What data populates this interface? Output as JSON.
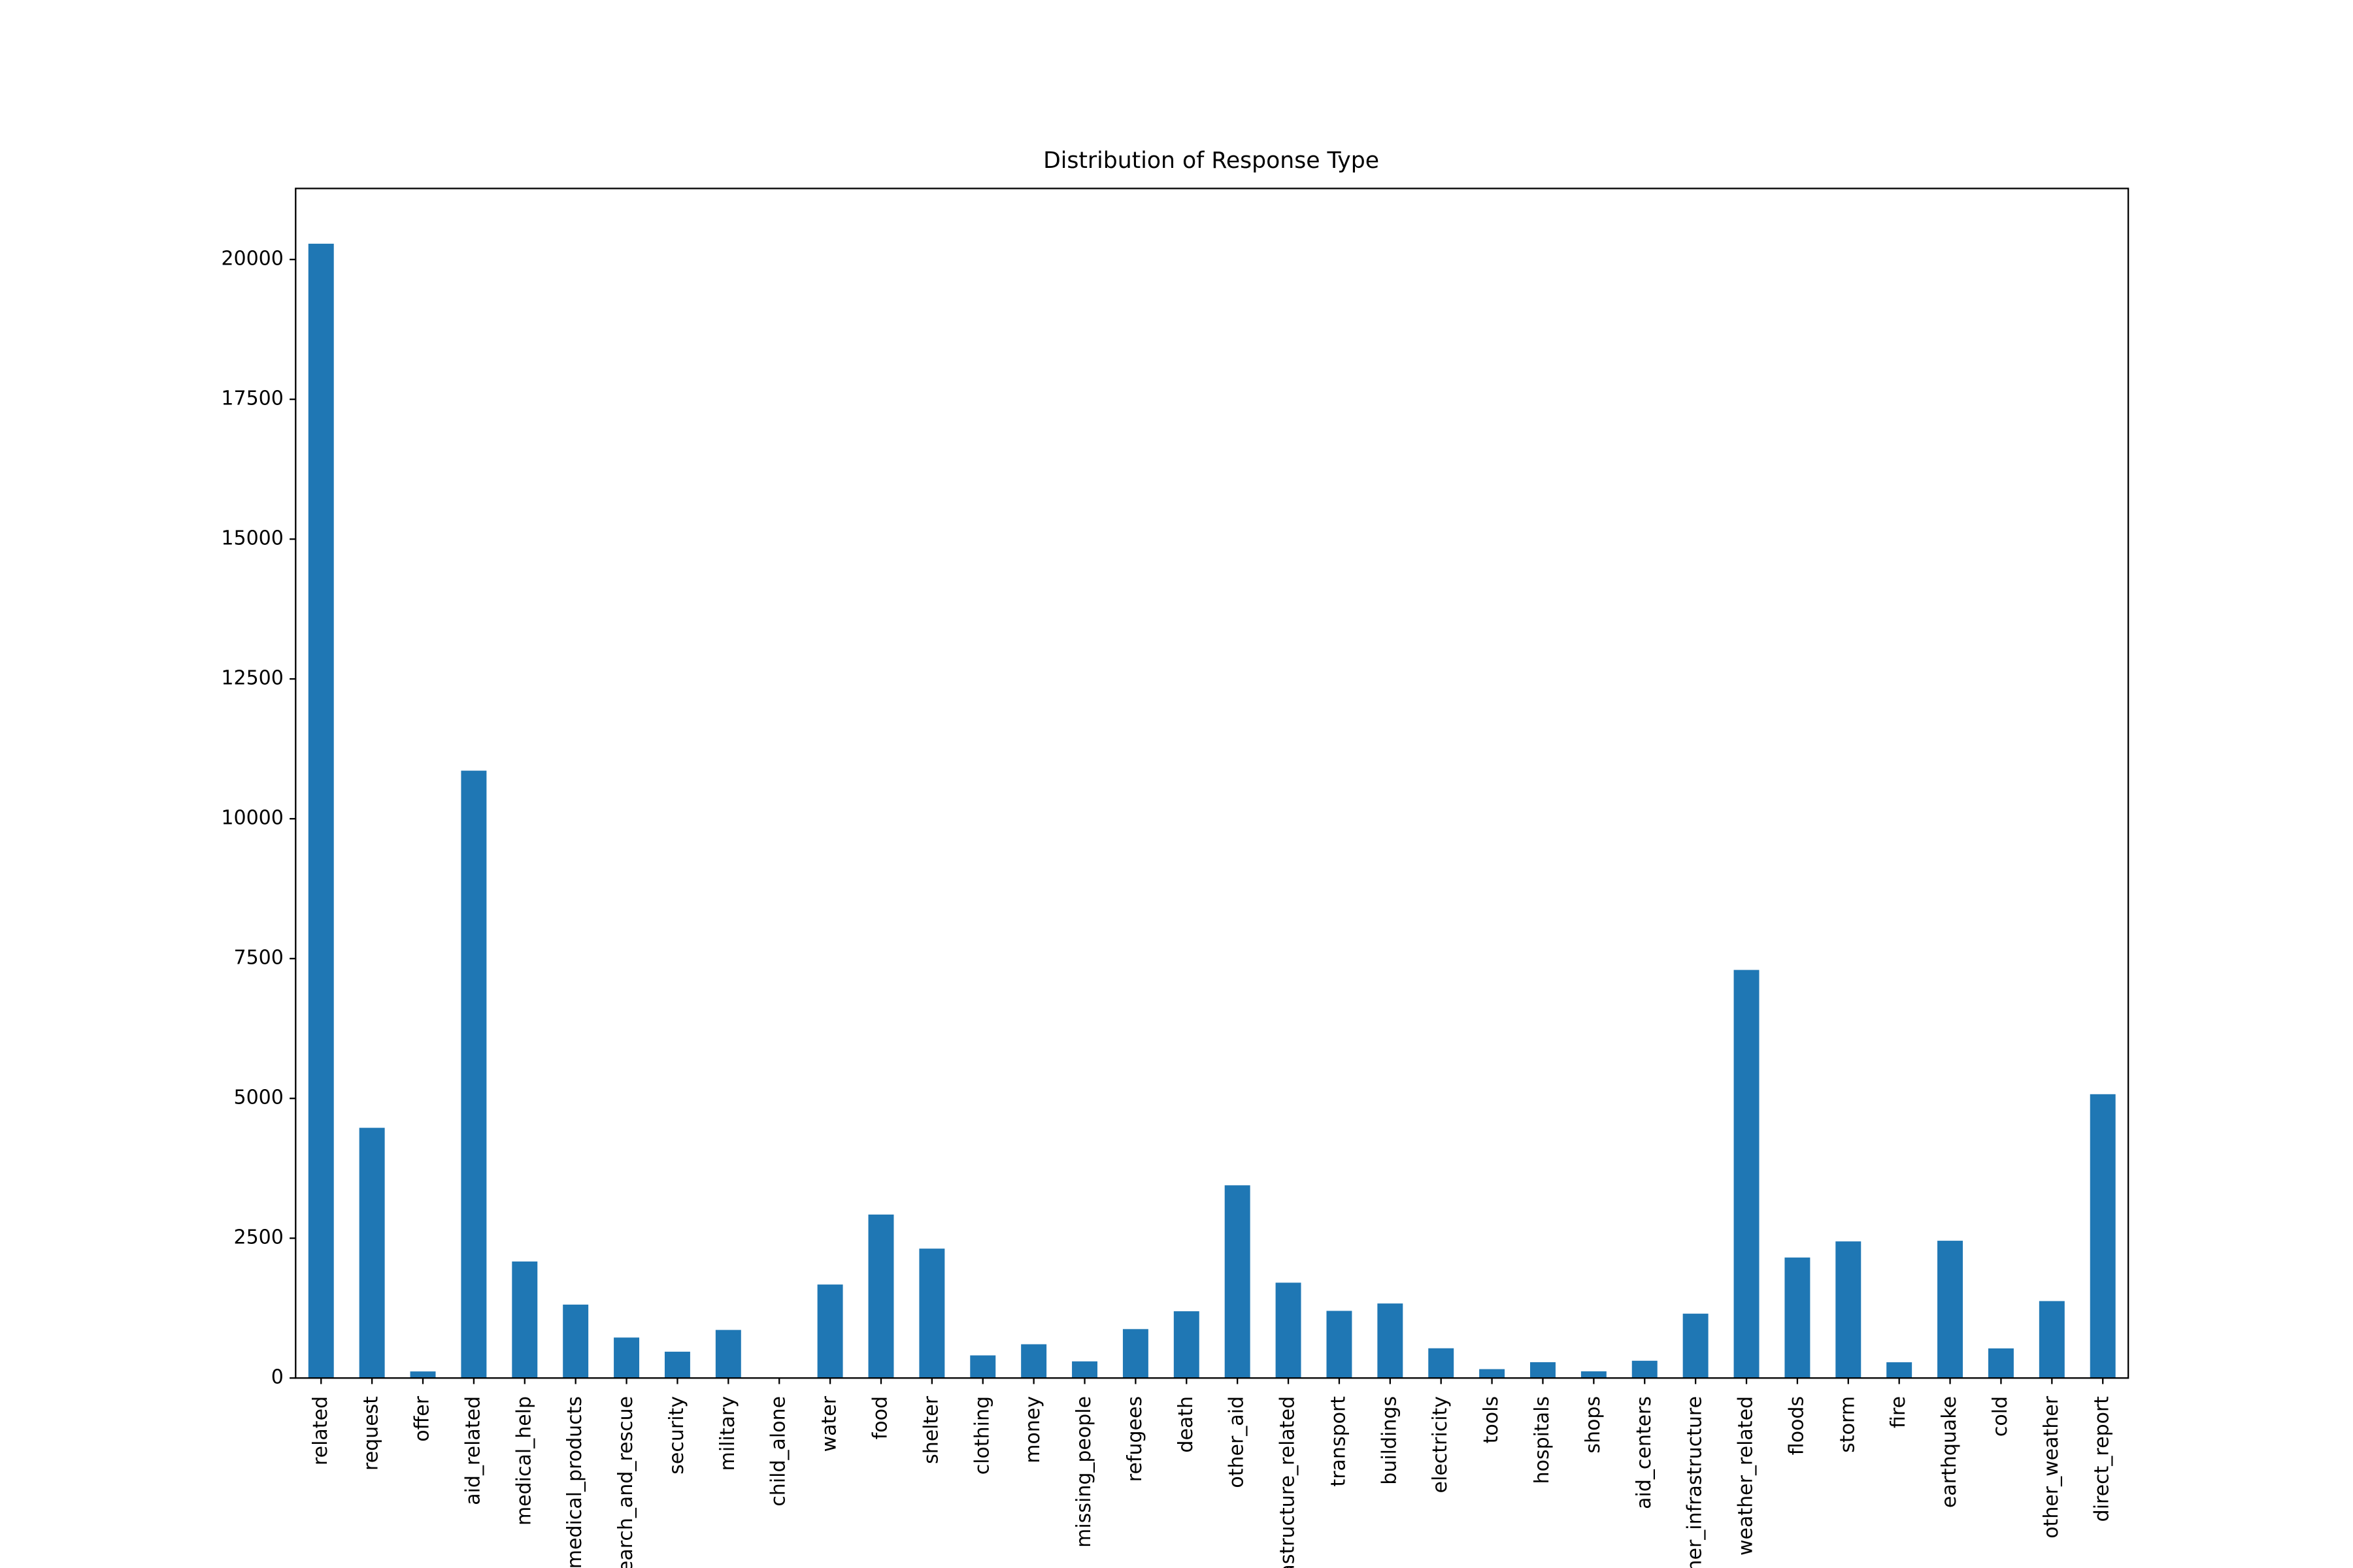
{
  "chart_data": {
    "type": "bar",
    "title": "Distribution of Response Type",
    "categories": [
      "related",
      "request",
      "offer",
      "aid_related",
      "medical_help",
      "medical_products",
      "search_and_rescue",
      "security",
      "military",
      "child_alone",
      "water",
      "food",
      "shelter",
      "clothing",
      "money",
      "missing_people",
      "refugees",
      "death",
      "other_aid",
      "infrastructure_related",
      "transport",
      "buildings",
      "electricity",
      "tools",
      "hospitals",
      "shops",
      "aid_centers",
      "other_infrastructure",
      "weather_related",
      "floods",
      "storm",
      "fire",
      "earthquake",
      "cold",
      "other_weather",
      "direct_report"
    ],
    "values": [
      20282,
      4474,
      118,
      10860,
      2084,
      1313,
      724,
      471,
      860,
      0,
      1672,
      2923,
      2314,
      405,
      604,
      298,
      875,
      1194,
      3446,
      1705,
      1201,
      1333,
      532,
      159,
      283,
      120,
      309,
      1151,
      7297,
      2155,
      2443,
      282,
      2455,
      530,
      1376,
      5075
    ],
    "color": "#1f77b4",
    "ylim": [
      0,
      21270
    ],
    "yticks": [
      0,
      2500,
      5000,
      7500,
      10000,
      12500,
      15000,
      17500,
      20000
    ],
    "grid": false
  }
}
